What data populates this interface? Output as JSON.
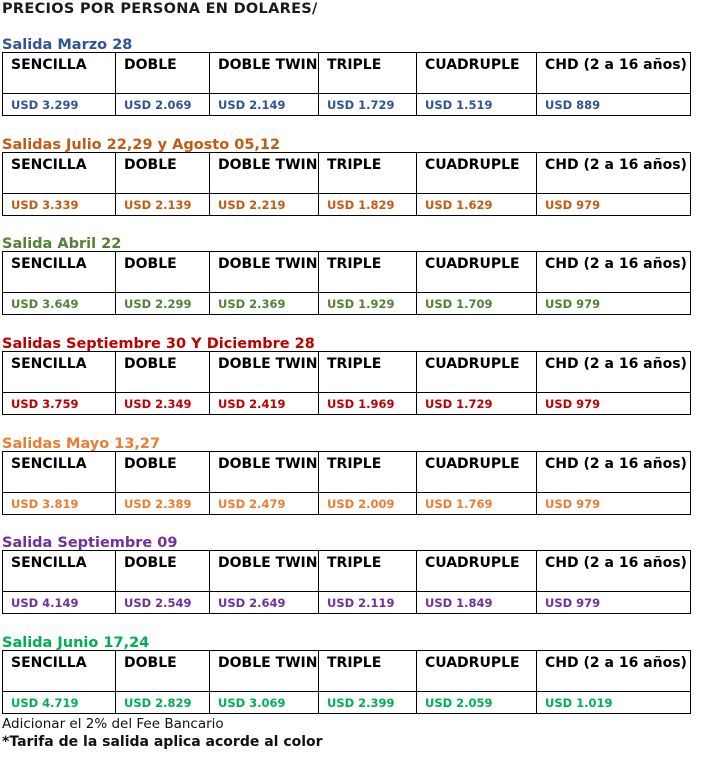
{
  "title": "PRECIOS POR PERSONA EN DOLARES/",
  "headers": [
    "SENCILLA",
    "DOBLE",
    "DOBLE TWIN",
    "TRIPLE",
    "CUADRUPLE",
    "CHD (2 a 16 años)"
  ],
  "sections": [
    {
      "title": "Salida Marzo 28",
      "color": "#2f5597",
      "values": [
        "USD 3.299",
        "USD 2.069",
        "USD 2.149",
        "USD 1.729",
        "USD 1.519",
        "USD 889"
      ]
    },
    {
      "title": "Salidas Julio 22,29 y Agosto 05,12",
      "color": "#c55a11",
      "values": [
        "USD 3.339",
        "USD 2.139",
        "USD 2.219",
        "USD 1.829",
        "USD 1.629",
        "USD 979"
      ]
    },
    {
      "title": "Salida Abril 22",
      "color": "#538135",
      "values": [
        "USD 3.649",
        "USD 2.299",
        "USD 2.369",
        "USD 1.929",
        "USD 1.709",
        "USD 979"
      ]
    },
    {
      "title": "Salidas Septiembre 30 Y Diciembre 28",
      "color": "#c00000",
      "values": [
        "USD 3.759",
        "USD 2.349",
        "USD 2.419",
        "USD 1.969",
        "USD 1.729",
        "USD 979"
      ]
    },
    {
      "title": "Salidas Mayo 13,27",
      "color": "#ed7d31",
      "values": [
        "USD 3.819",
        "USD 2.389",
        "USD 2.479",
        "USD 2.009",
        "USD 1.769",
        "USD 979"
      ]
    },
    {
      "title": "Salida Septiembre 09",
      "color": "#7030a0",
      "values": [
        "USD 4.149",
        "USD 2.549",
        "USD 2.649",
        "USD 2.119",
        "USD 1.849",
        "USD 979"
      ]
    },
    {
      "title": "Salida Junio 17,24",
      "color": "#00b050",
      "values": [
        "USD 4.719",
        "USD 2.829",
        "USD 3.069",
        "USD 2.399",
        "USD 2.059",
        "USD 1.019"
      ]
    }
  ],
  "footer": {
    "note1": "Adicionar el 2% del Fee Bancario",
    "note2": "*Tarifa de la salida aplica acorde al color"
  }
}
